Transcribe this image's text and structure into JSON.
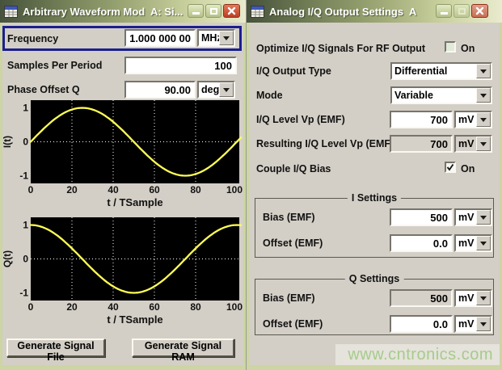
{
  "left": {
    "title": "Arbitrary Waveform Mod  A: Si...",
    "frequency": {
      "label": "Frequency",
      "value": "1.000 000 00",
      "unit": "MHz"
    },
    "samples_per_period": {
      "label": "Samples Per Period",
      "value": "100"
    },
    "phase_offset_q": {
      "label": "Phase Offset Q",
      "value": "90.00",
      "unit": "deg"
    },
    "generate_file_button": "Generate Signal File",
    "generate_ram_button": "Generate Signal RAM"
  },
  "right": {
    "title": "Analog I/Q Output Settings  A",
    "optimize": {
      "label": "Optimize I/Q Signals For RF Output",
      "state_label": "On",
      "checked": false
    },
    "output_type": {
      "label": "I/Q Output Type",
      "value": "Differential"
    },
    "mode": {
      "label": "Mode",
      "value": "Variable"
    },
    "iq_level": {
      "label": "I/Q Level Vp (EMF)",
      "value": "700",
      "unit": "mV"
    },
    "resulting_level": {
      "label": "Resulting I/Q Level Vp (EMF)",
      "value": "700",
      "unit": "mV"
    },
    "couple_bias": {
      "label": "Couple I/Q Bias",
      "state_label": "On",
      "checked": true
    },
    "i_settings": {
      "title": "I Settings",
      "bias": {
        "label": "Bias (EMF)",
        "value": "500",
        "unit": "mV"
      },
      "offset": {
        "label": "Offset (EMF)",
        "value": "0.0",
        "unit": "mV"
      }
    },
    "q_settings": {
      "title": "Q Settings",
      "bias": {
        "label": "Bias (EMF)",
        "value": "500",
        "unit": "mV"
      },
      "offset": {
        "label": "Offset (EMF)",
        "value": "0.0",
        "unit": "mV"
      }
    }
  },
  "watermark": "www.cntronics.com",
  "colors": {
    "highlight_border": "#1c1f8e",
    "curve": "#ffff55",
    "plot_bg": "#000000",
    "dialog_bg": "#d3cfc6",
    "titlebar_left": "#46523b",
    "titlebar_right": "#e9ebcd",
    "close_button": "#bd3f24",
    "watermark": "#a6cb8c"
  },
  "chart_data": [
    {
      "type": "line",
      "ylabel": "I(t)",
      "xlabel": "t / TSample",
      "x_ticks": [
        0,
        20,
        40,
        60,
        80,
        100
      ],
      "y_ticks": [
        1,
        0,
        -1
      ],
      "xlim": [
        0,
        102
      ],
      "ylim": [
        -1,
        1
      ],
      "waveform": "sine",
      "amplitude": 1,
      "period": 100,
      "phase_deg": 0,
      "line_color": "#ffff55",
      "bg": "#000000",
      "grid": "dotted-white",
      "x": [
        0,
        10,
        20,
        30,
        40,
        50,
        60,
        70,
        80,
        90,
        100
      ],
      "values": [
        0,
        0.588,
        0.951,
        0.951,
        0.588,
        0,
        -0.588,
        -0.951,
        -0.951,
        -0.588,
        0
      ]
    },
    {
      "type": "line",
      "ylabel": "Q(t)",
      "xlabel": "t / TSample",
      "x_ticks": [
        0,
        20,
        40,
        60,
        80,
        100
      ],
      "y_ticks": [
        1,
        0,
        -1
      ],
      "xlim": [
        0,
        102
      ],
      "ylim": [
        -1,
        1
      ],
      "waveform": "sine",
      "amplitude": 1,
      "period": 100,
      "phase_deg": 90,
      "line_color": "#ffff55",
      "bg": "#000000",
      "grid": "dotted-white",
      "x": [
        0,
        10,
        20,
        30,
        40,
        50,
        60,
        70,
        80,
        90,
        100
      ],
      "values": [
        1,
        0.809,
        0.309,
        -0.309,
        -0.809,
        -1,
        -0.809,
        -0.309,
        0.309,
        0.809,
        1
      ]
    }
  ]
}
